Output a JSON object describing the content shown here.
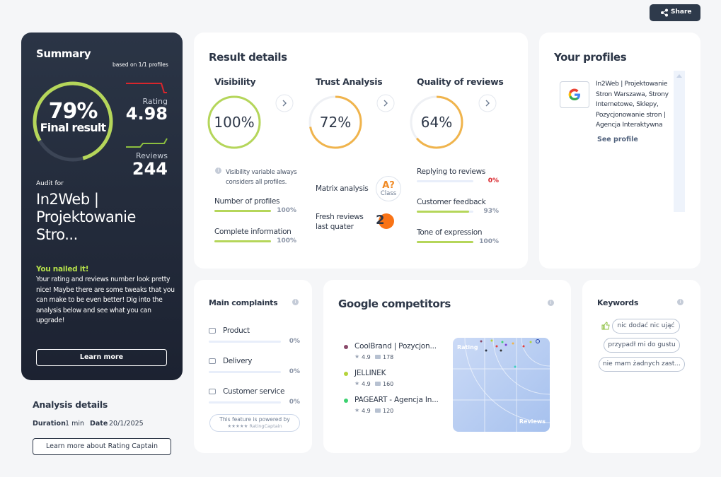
{
  "share": "Share",
  "summary": {
    "title": "Summary",
    "based_on": "based on 1/1 profiles",
    "score": {
      "value": 79,
      "label": "79%"
    },
    "score_label": "Final result",
    "rating_label": "Rating",
    "rating": "4.98",
    "reviews_label": "Reviews",
    "reviews": "244",
    "audit_for": "Audit for",
    "company": "In2Web | Projektowanie Stro...",
    "nailed": "You nailed it!",
    "message": "Your rating and reviews number look pretty nice! Maybe there are some tweaks that you can make to be even better! Dig into the analysis below and see what you can upgrade!",
    "button": "Learn more"
  },
  "analysis": {
    "title": "Analysis details",
    "duration_label": "Duration",
    "duration": "1 min",
    "date_label": "Date",
    "date": "20/1/2025",
    "button": "Learn more about Rating Captain"
  },
  "result": {
    "title": "Result details",
    "visibility": {
      "title": "Visibility",
      "score": {
        "value": 100,
        "label": "100%"
      },
      "note": "Visibility variable always considers all profiles.",
      "items": [
        {
          "name": "Number of profiles",
          "value": 100,
          "label": "100%"
        },
        {
          "name": "Complete information",
          "value": 100,
          "label": "100%"
        }
      ]
    },
    "trust": {
      "title": "Trust Analysis",
      "score": {
        "value": 72,
        "label": "72%"
      },
      "matrix": "Matrix analysis",
      "badge": "A?",
      "badge_sub": "Class",
      "fresh": "Fresh reviews last quater",
      "fresh_value": "2"
    },
    "quality": {
      "title": "Quality of reviews",
      "score": {
        "value": 64,
        "label": "64%"
      },
      "items": [
        {
          "name": "Replying to reviews",
          "value": 0,
          "label": "0%"
        },
        {
          "name": "Customer feedback",
          "value": 93,
          "label": "93%"
        },
        {
          "name": "Tone of expression",
          "value": 100,
          "label": "100%"
        }
      ]
    }
  },
  "profiles": {
    "title": "Your profiles",
    "name": "In2Web | Projektowanie Stron Warszawa, Strony Internetowe, Sklepy, Pozycjonowanie stron | Agencja Interaktywna",
    "link": "See profile"
  },
  "complaints": {
    "title": "Main complaints",
    "items": [
      {
        "name": "Product",
        "value": 0,
        "label": "0%"
      },
      {
        "name": "Delivery",
        "value": 0,
        "label": "0%"
      },
      {
        "name": "Customer service",
        "value": 0,
        "label": "0%"
      }
    ],
    "powered": "This feature is powered by",
    "brand": "★★★★★ RatingCaptain"
  },
  "competitors": {
    "title": "Google competitors",
    "items": [
      {
        "name": "CoolBrand | Pozycjon...",
        "rating": "4.9",
        "reviews": "178",
        "color": "#8a4a6a"
      },
      {
        "name": "JELLINEK",
        "rating": "4.9",
        "reviews": "160",
        "color": "#b5d33a"
      },
      {
        "name": "PAGEART - Agencja In...",
        "rating": "4.9",
        "reviews": "120",
        "color": "#3bd16f"
      }
    ],
    "y_label": "Rating",
    "x_label": "Reviews"
  },
  "keywords": {
    "title": "Keywords",
    "items": [
      "nic dodać nic ująć",
      "przypadł mi do gustu",
      "nie mam żadnych zast..."
    ]
  }
}
